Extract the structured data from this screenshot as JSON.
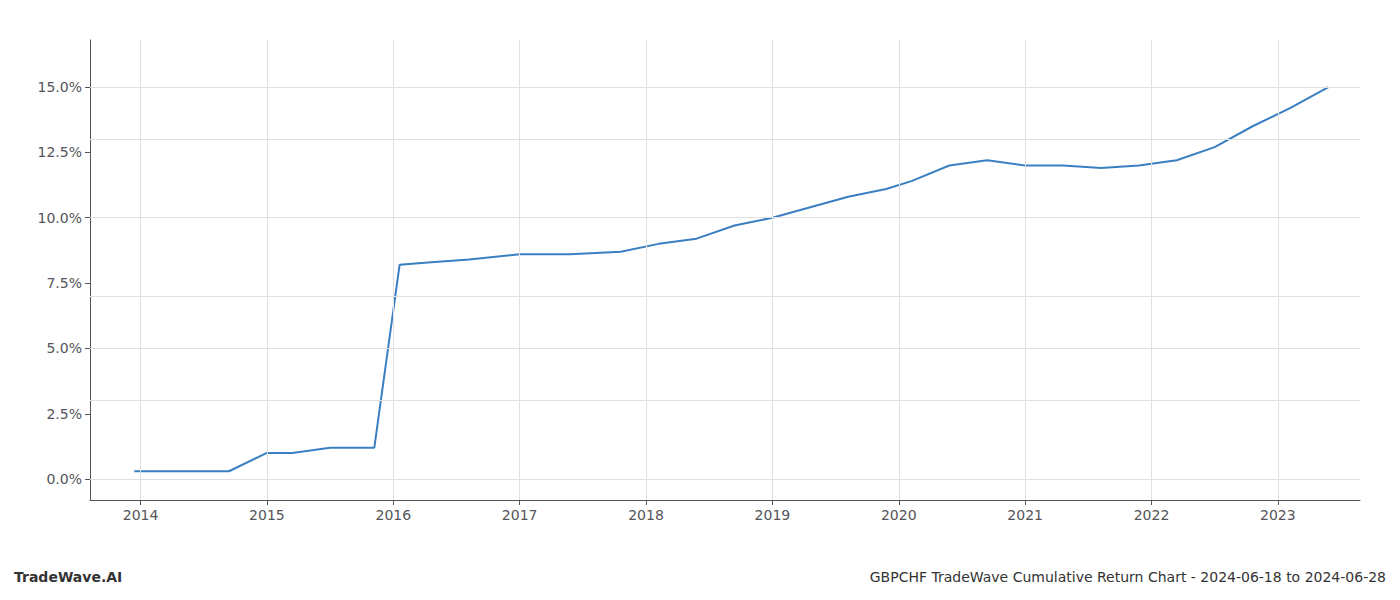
{
  "chart_data": {
    "type": "line",
    "x": [
      2013.95,
      2014.3,
      2014.7,
      2015.0,
      2015.2,
      2015.5,
      2015.85,
      2016.05,
      2016.3,
      2016.6,
      2017.0,
      2017.4,
      2017.8,
      2018.1,
      2018.4,
      2018.7,
      2019.0,
      2019.3,
      2019.6,
      2019.9,
      2020.1,
      2020.4,
      2020.7,
      2021.0,
      2021.3,
      2021.6,
      2021.9,
      2022.2,
      2022.5,
      2022.8,
      2023.1,
      2023.4
    ],
    "values": [
      0.003,
      0.003,
      0.003,
      0.01,
      0.01,
      0.012,
      0.012,
      0.082,
      0.083,
      0.084,
      0.086,
      0.086,
      0.087,
      0.09,
      0.092,
      0.097,
      0.1,
      0.104,
      0.108,
      0.111,
      0.114,
      0.12,
      0.122,
      0.12,
      0.12,
      0.119,
      0.12,
      0.122,
      0.127,
      0.135,
      0.142,
      0.15
    ],
    "color": "#3a7fc1",
    "xlim": [
      2013.6,
      2023.65
    ],
    "xticks": [
      2014,
      2015,
      2016,
      2017,
      2018,
      2019,
      2020,
      2021,
      2022,
      2023
    ],
    "ylim": [
      -0.008,
      0.168
    ],
    "yticks": [
      {
        "value": 0.0,
        "label": "0.0%"
      },
      {
        "value": 0.025,
        "label": "2.5%"
      },
      {
        "value": 0.05,
        "label": "5.0%"
      },
      {
        "value": 0.075,
        "label": "7.5%"
      },
      {
        "value": 0.1,
        "label": "10.0%"
      },
      {
        "value": 0.125,
        "label": "12.5%"
      },
      {
        "value": 0.15,
        "label": "15.0%"
      }
    ],
    "grid": true,
    "annotations": [
      "TradeWave.AI",
      "GBPCHF TradeWave Cumulative Return Chart - 2024-06-18 to 2024-06-28"
    ]
  }
}
